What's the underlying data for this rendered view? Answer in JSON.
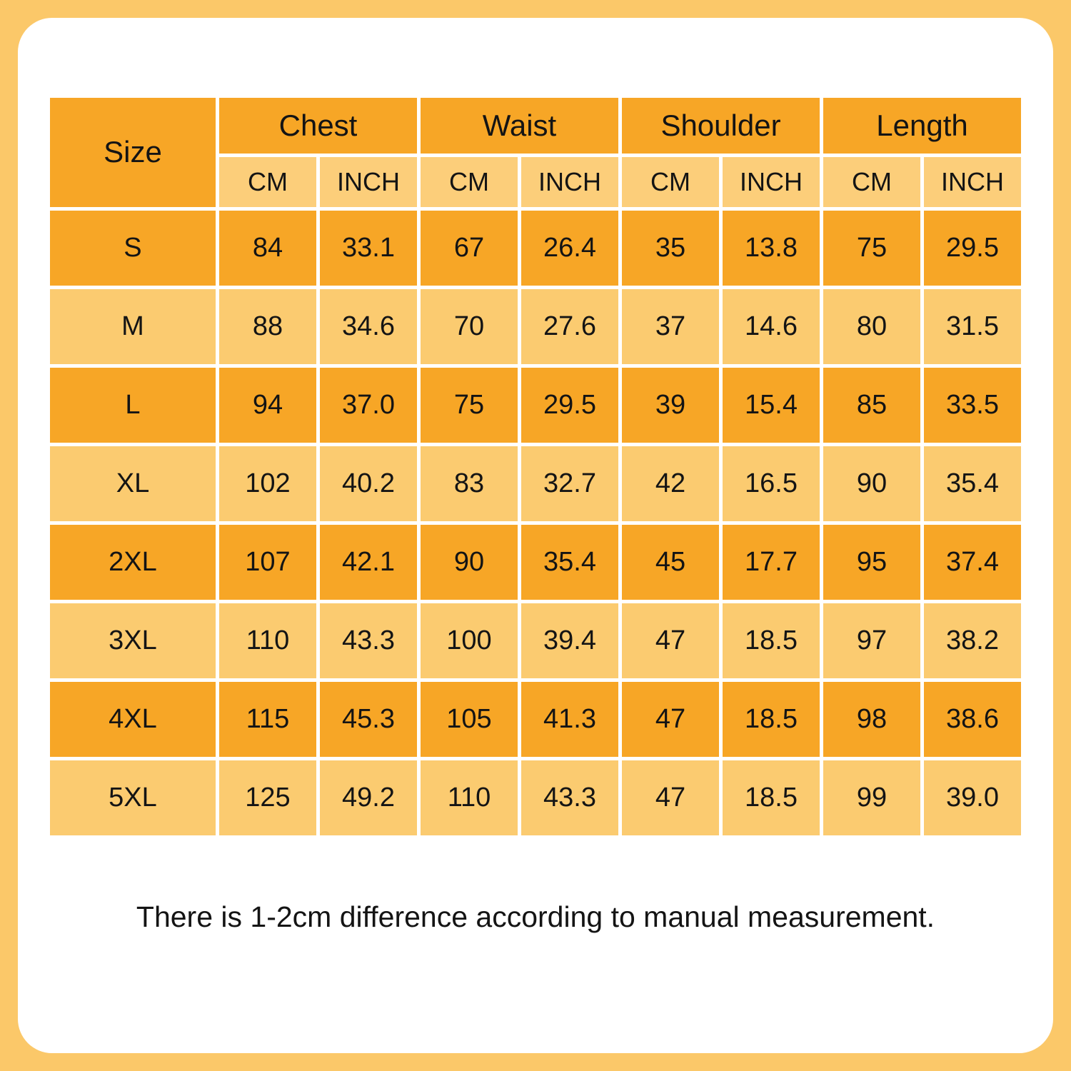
{
  "colors": {
    "frame_background": "#FBC869",
    "panel_background": "#FFFFFF",
    "cell_dark_orange": "#F7A626",
    "cell_light_orange": "#FBCB70",
    "cell_unit_orange": "#FCCE7A",
    "text": "#141414"
  },
  "table": {
    "corner_label": "Size",
    "groups": [
      {
        "label": "Chest",
        "units": [
          "CM",
          "INCH"
        ]
      },
      {
        "label": "Waist",
        "units": [
          "CM",
          "INCH"
        ]
      },
      {
        "label": "Shoulder",
        "units": [
          "CM",
          "INCH"
        ]
      },
      {
        "label": "Length",
        "units": [
          "CM",
          "INCH"
        ]
      }
    ],
    "rows": [
      {
        "size": "S",
        "values": [
          "84",
          "33.1",
          "67",
          "26.4",
          "35",
          "13.8",
          "75",
          "29.5"
        ]
      },
      {
        "size": "M",
        "values": [
          "88",
          "34.6",
          "70",
          "27.6",
          "37",
          "14.6",
          "80",
          "31.5"
        ]
      },
      {
        "size": "L",
        "values": [
          "94",
          "37.0",
          "75",
          "29.5",
          "39",
          "15.4",
          "85",
          "33.5"
        ]
      },
      {
        "size": "XL",
        "values": [
          "102",
          "40.2",
          "83",
          "32.7",
          "42",
          "16.5",
          "90",
          "35.4"
        ]
      },
      {
        "size": "2XL",
        "values": [
          "107",
          "42.1",
          "90",
          "35.4",
          "45",
          "17.7",
          "95",
          "37.4"
        ]
      },
      {
        "size": "3XL",
        "values": [
          "110",
          "43.3",
          "100",
          "39.4",
          "47",
          "18.5",
          "97",
          "38.2"
        ]
      },
      {
        "size": "4XL",
        "values": [
          "115",
          "45.3",
          "105",
          "41.3",
          "47",
          "18.5",
          "98",
          "38.6"
        ]
      },
      {
        "size": "5XL",
        "values": [
          "125",
          "49.2",
          "110",
          "43.3",
          "47",
          "18.5",
          "99",
          "39.0"
        ]
      }
    ]
  },
  "note": {
    "text": "There is 1-2cm difference according to manual measurement."
  },
  "chart_data": {
    "type": "table",
    "title": "Garment size chart",
    "columns": [
      "Size",
      "Chest CM",
      "Chest INCH",
      "Waist CM",
      "Waist INCH",
      "Shoulder CM",
      "Shoulder INCH",
      "Length CM",
      "Length INCH"
    ],
    "rows": [
      [
        "S",
        "84",
        "33.1",
        "67",
        "26.4",
        "35",
        "13.8",
        "75",
        "29.5"
      ],
      [
        "M",
        "88",
        "34.6",
        "70",
        "27.6",
        "37",
        "14.6",
        "80",
        "31.5"
      ],
      [
        "L",
        "94",
        "37.0",
        "75",
        "29.5",
        "39",
        "15.4",
        "85",
        "33.5"
      ],
      [
        "XL",
        "102",
        "40.2",
        "83",
        "32.7",
        "42",
        "16.5",
        "90",
        "35.4"
      ],
      [
        "2XL",
        "107",
        "42.1",
        "90",
        "35.4",
        "45",
        "17.7",
        "95",
        "37.4"
      ],
      [
        "3XL",
        "110",
        "43.3",
        "100",
        "39.4",
        "47",
        "18.5",
        "97",
        "38.2"
      ],
      [
        "4XL",
        "115",
        "45.3",
        "105",
        "41.3",
        "47",
        "18.5",
        "98",
        "38.6"
      ],
      [
        "5XL",
        "125",
        "49.2",
        "110",
        "43.3",
        "47",
        "18.5",
        "99",
        "39.0"
      ]
    ],
    "footnote": "There is 1-2cm difference according to manual measurement."
  }
}
